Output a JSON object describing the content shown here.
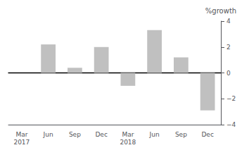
{
  "chart_data": {
    "type": "bar",
    "ylabel": "%growth",
    "categories": [
      "Mar\n2017",
      "Jun",
      "Sep",
      "Dec",
      "Mar\n2018",
      "Jun",
      "Sep",
      "Dec"
    ],
    "values": [
      0.0,
      2.2,
      0.4,
      2.0,
      -1.0,
      3.3,
      1.2,
      -2.9
    ],
    "color": "#c0c0c0",
    "ylim": [
      -4,
      4
    ],
    "yticks": [
      {
        "value": -4,
        "label": "−4"
      },
      {
        "value": -2,
        "label": "−2"
      },
      0,
      2,
      4
    ],
    "grid": false
  }
}
